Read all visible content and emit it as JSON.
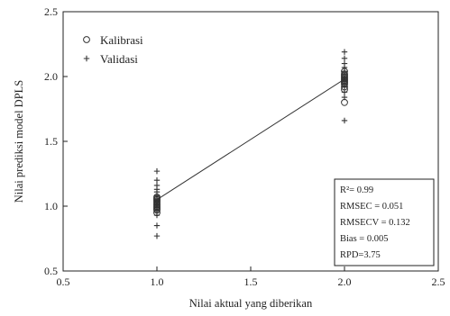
{
  "chart_data": {
    "type": "scatter",
    "xlabel": "Nilai aktual yang diberikan",
    "ylabel": "Nilai prediksi model DPLS",
    "xlim": [
      0.5,
      2.5
    ],
    "ylim": [
      0.5,
      2.5
    ],
    "xticks": [
      "0.5",
      "1.0",
      "1.5",
      "2.0",
      "2.5"
    ],
    "yticks": [
      "0.5",
      "1.0",
      "1.5",
      "2.0",
      "2.5"
    ],
    "grid": false,
    "legend_position": "top-left",
    "series": [
      {
        "name": "Kalibrasi",
        "marker": "circle",
        "x": [
          1,
          1,
          1,
          1,
          1,
          1,
          1,
          1,
          1,
          1,
          1,
          1,
          2,
          2,
          2,
          2,
          2,
          2,
          2,
          2,
          2,
          2,
          2,
          2,
          2
        ],
        "y": [
          0.95,
          0.97,
          0.98,
          0.99,
          1.0,
          1.01,
          1.02,
          1.03,
          1.04,
          1.05,
          1.06,
          1.07,
          1.8,
          1.9,
          1.92,
          1.94,
          1.95,
          1.96,
          1.97,
          1.98,
          1.99,
          2.0,
          2.01,
          2.02,
          2.04
        ]
      },
      {
        "name": "Validasi",
        "marker": "plus",
        "x": [
          1,
          1,
          1,
          1,
          1,
          1,
          1,
          1,
          1,
          1,
          1,
          1,
          2,
          2,
          2,
          2,
          2,
          2,
          2,
          2,
          2,
          2,
          2
        ],
        "y": [
          0.77,
          0.85,
          0.93,
          0.97,
          1.0,
          1.04,
          1.08,
          1.11,
          1.13,
          1.16,
          1.2,
          1.27,
          1.66,
          1.84,
          1.88,
          1.92,
          1.96,
          2.0,
          2.04,
          2.07,
          2.1,
          2.14,
          2.19
        ]
      }
    ],
    "fit_line": {
      "x": [
        1.0,
        2.0
      ],
      "y": [
        1.05,
        1.98
      ]
    },
    "stats": [
      "R²= 0.99",
      "RMSEC = 0.051",
      "RMSECV = 0.132",
      "Bias = 0.005",
      "RPD=3.75"
    ]
  },
  "colors": {
    "axis": "#222222",
    "marker": "#333333",
    "line": "#333333",
    "background": "#ffffff"
  }
}
